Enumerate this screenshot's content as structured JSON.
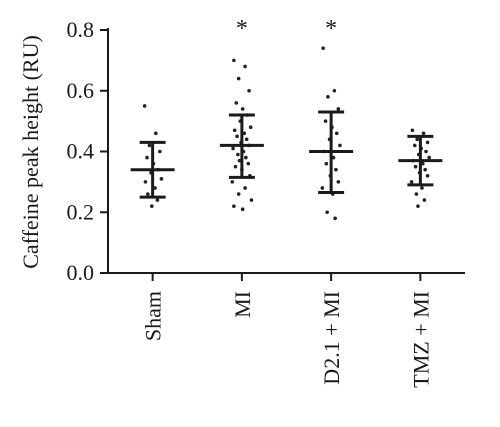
{
  "chart_data": {
    "type": "scatter",
    "ylabel": "Caffeine peak height (RU)",
    "xlabel": "",
    "ylim": [
      0.0,
      0.8
    ],
    "yticks": [
      "0.0",
      "0.2",
      "0.4",
      "0.6",
      "0.8"
    ],
    "categories": [
      "Sham",
      "MI",
      "D2.1 + MI",
      "TMZ + MI"
    ],
    "groups": [
      {
        "category": "Sham",
        "mean": 0.34,
        "upper": 0.43,
        "lower": 0.25,
        "annotation": "",
        "points": [
          0.55,
          0.46,
          0.42,
          0.4,
          0.38,
          0.36,
          0.34,
          0.33,
          0.31,
          0.3,
          0.28,
          0.26,
          0.24,
          0.22
        ]
      },
      {
        "category": "MI",
        "mean": 0.42,
        "upper": 0.52,
        "lower": 0.315,
        "annotation": "*",
        "points": [
          0.7,
          0.68,
          0.64,
          0.6,
          0.56,
          0.54,
          0.52,
          0.5,
          0.48,
          0.47,
          0.46,
          0.45,
          0.44,
          0.43,
          0.42,
          0.41,
          0.4,
          0.39,
          0.38,
          0.37,
          0.36,
          0.35,
          0.34,
          0.32,
          0.3,
          0.28,
          0.26,
          0.24,
          0.22,
          0.21
        ]
      },
      {
        "category": "D2.1 + MI",
        "mean": 0.4,
        "upper": 0.53,
        "lower": 0.265,
        "annotation": "*",
        "points": [
          0.74,
          0.6,
          0.58,
          0.54,
          0.5,
          0.48,
          0.46,
          0.44,
          0.42,
          0.4,
          0.38,
          0.36,
          0.34,
          0.32,
          0.3,
          0.28,
          0.26,
          0.2,
          0.18
        ]
      },
      {
        "category": "TMZ + MI",
        "mean": 0.37,
        "upper": 0.45,
        "lower": 0.29,
        "annotation": "",
        "points": [
          0.47,
          0.46,
          0.44,
          0.43,
          0.42,
          0.41,
          0.4,
          0.39,
          0.38,
          0.37,
          0.36,
          0.35,
          0.34,
          0.33,
          0.32,
          0.3,
          0.28,
          0.26,
          0.24,
          0.22
        ]
      }
    ]
  }
}
